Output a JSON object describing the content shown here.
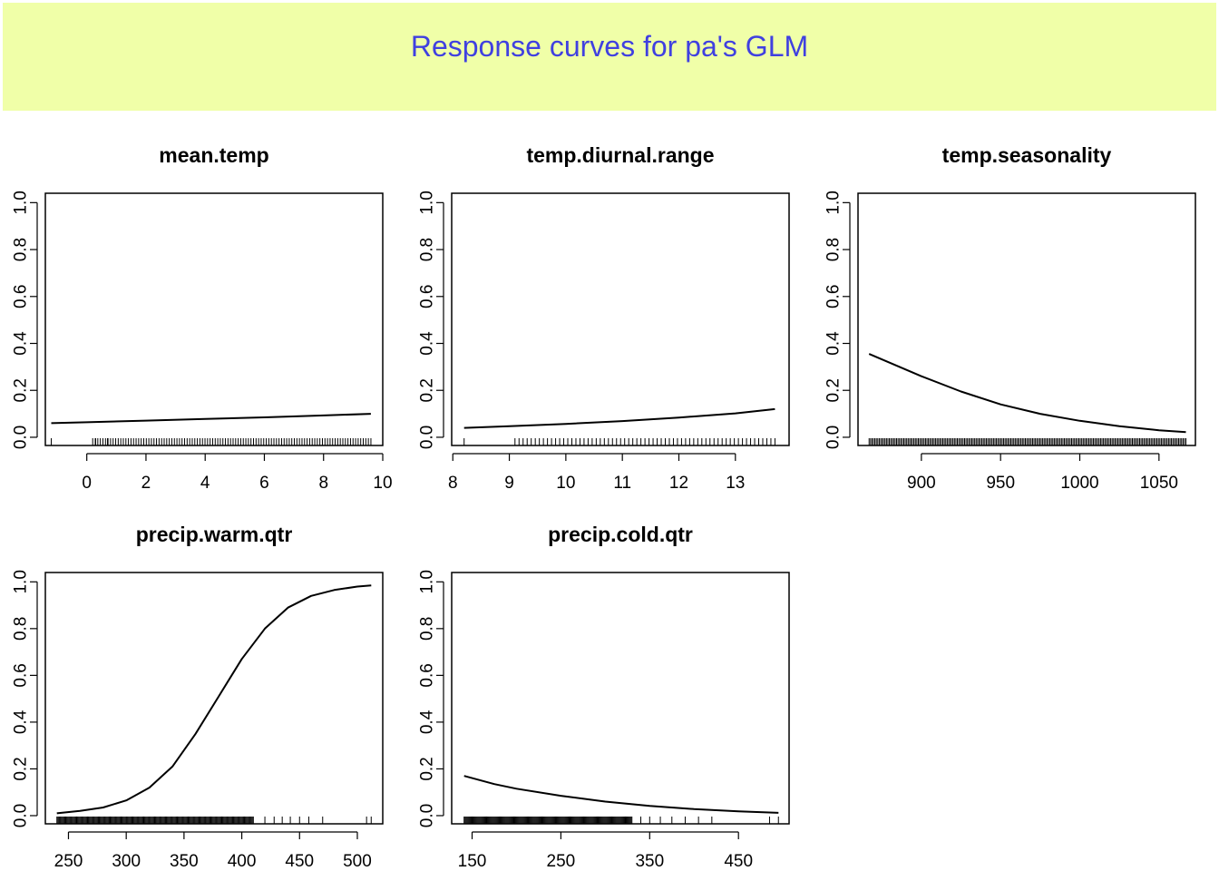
{
  "header": {
    "title": "Response curves for pa's GLM",
    "background_color": "#f0ffa8",
    "title_color": "#4040e0"
  },
  "chart_data": [
    {
      "type": "line",
      "title": "mean.temp",
      "xlabel": "",
      "ylabel": "",
      "xlim": [
        -1.4,
        10
      ],
      "ylim": [
        -0.035,
        1.04
      ],
      "xticks": [
        0,
        2,
        4,
        6,
        8,
        10
      ],
      "yticks": [
        0.0,
        0.2,
        0.4,
        0.6,
        0.8,
        1.0
      ],
      "ytick_labels": [
        "0.0",
        "0.2",
        "0.4",
        "0.6",
        "0.8",
        "1.0"
      ],
      "x": [
        -1.2,
        0,
        2,
        4,
        6,
        8,
        9.6
      ],
      "y": [
        0.06,
        0.064,
        0.071,
        0.078,
        0.085,
        0.093,
        0.1
      ],
      "rug": {
        "min": 0.2,
        "max": 9.6,
        "count": 110,
        "extra": [
          -1.2,
          0.3,
          0.7
        ]
      },
      "grid": false,
      "legend": "none"
    },
    {
      "type": "line",
      "title": "temp.diurnal.range",
      "xlabel": "",
      "ylabel": "",
      "xlim": [
        7.98,
        13.95
      ],
      "ylim": [
        -0.035,
        1.04
      ],
      "xticks": [
        8,
        9,
        10,
        11,
        12,
        13
      ],
      "yticks": [
        0.0,
        0.2,
        0.4,
        0.6,
        0.8,
        1.0
      ],
      "ytick_labels": [
        "0.0",
        "0.2",
        "0.4",
        "0.6",
        "0.8",
        "1.0"
      ],
      "x": [
        8.2,
        9,
        10,
        11,
        12,
        13,
        13.7
      ],
      "y": [
        0.04,
        0.047,
        0.057,
        0.069,
        0.084,
        0.102,
        0.12
      ],
      "rug": {
        "min": 9.1,
        "max": 13.7,
        "count": 65,
        "extra": [
          8.2
        ]
      },
      "grid": false,
      "legend": "none"
    },
    {
      "type": "line",
      "title": "temp.seasonality",
      "xlabel": "",
      "ylabel": "",
      "xlim": [
        860,
        1073
      ],
      "ylim": [
        -0.035,
        1.04
      ],
      "xticks": [
        900,
        950,
        1000,
        1050
      ],
      "yticks": [
        0.0,
        0.2,
        0.4,
        0.6,
        0.8,
        1.0
      ],
      "ytick_labels": [
        "0.0",
        "0.2",
        "0.4",
        "0.6",
        "0.8",
        "1.0"
      ],
      "x": [
        867,
        900,
        925,
        950,
        975,
        1000,
        1025,
        1050,
        1067
      ],
      "y": [
        0.355,
        0.26,
        0.195,
        0.14,
        0.1,
        0.07,
        0.047,
        0.03,
        0.022
      ],
      "rug": {
        "min": 867,
        "max": 1067,
        "count": 220,
        "extra": []
      },
      "grid": false,
      "legend": "none"
    },
    {
      "type": "line",
      "title": "precip.warm.qtr",
      "xlabel": "",
      "ylabel": "",
      "xlim": [
        230,
        522
      ],
      "ylim": [
        -0.035,
        1.04
      ],
      "xticks": [
        250,
        300,
        350,
        400,
        450,
        500
      ],
      "yticks": [
        0.0,
        0.2,
        0.4,
        0.6,
        0.8,
        1.0
      ],
      "ytick_labels": [
        "0.0",
        "0.2",
        "0.4",
        "0.6",
        "0.8",
        "1.0"
      ],
      "x": [
        240,
        260,
        280,
        300,
        320,
        340,
        360,
        380,
        400,
        420,
        440,
        460,
        480,
        500,
        512
      ],
      "y": [
        0.01,
        0.02,
        0.035,
        0.065,
        0.12,
        0.21,
        0.35,
        0.51,
        0.67,
        0.8,
        0.89,
        0.94,
        0.965,
        0.98,
        0.985
      ],
      "rug": {
        "min": 240,
        "max": 410,
        "count": 200,
        "extra": [
          420,
          428,
          435,
          442,
          450,
          458,
          470,
          508,
          512
        ]
      },
      "grid": false,
      "legend": "none"
    },
    {
      "type": "line",
      "title": "precip.cold.qtr",
      "xlabel": "",
      "ylabel": "",
      "xlim": [
        127,
        507
      ],
      "ylim": [
        -0.035,
        1.04
      ],
      "xticks": [
        150,
        250,
        350,
        450
      ],
      "yticks": [
        0.0,
        0.2,
        0.4,
        0.6,
        0.8,
        1.0
      ],
      "ytick_labels": [
        "0.0",
        "0.2",
        "0.4",
        "0.6",
        "0.8",
        "1.0"
      ],
      "x": [
        141,
        175,
        200,
        250,
        300,
        350,
        400,
        450,
        495
      ],
      "y": [
        0.17,
        0.135,
        0.115,
        0.085,
        0.06,
        0.042,
        0.028,
        0.018,
        0.012
      ],
      "rug": {
        "min": 141,
        "max": 330,
        "count": 180,
        "extra": [
          340,
          350,
          362,
          375,
          390,
          405,
          420,
          485,
          495
        ]
      },
      "grid": false,
      "legend": "none"
    }
  ]
}
